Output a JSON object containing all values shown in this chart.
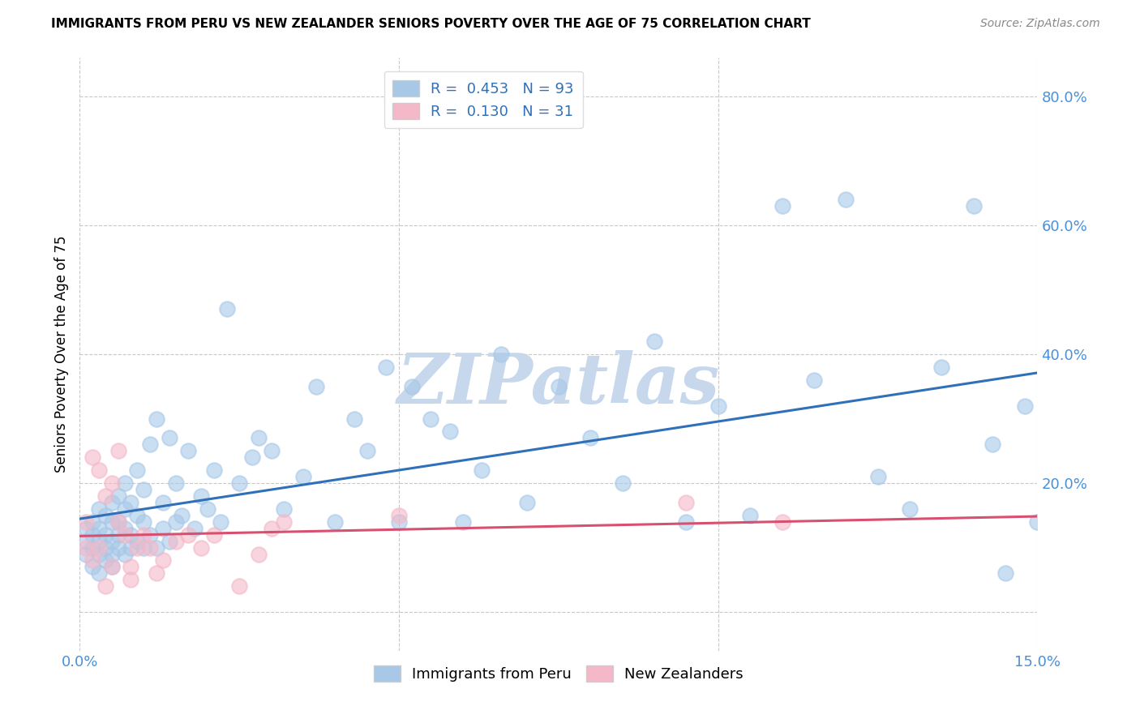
{
  "title": "IMMIGRANTS FROM PERU VS NEW ZEALANDER SENIORS POVERTY OVER THE AGE OF 75 CORRELATION CHART",
  "source": "Source: ZipAtlas.com",
  "ylabel": "Seniors Poverty Over the Age of 75",
  "xlim": [
    0.0,
    0.15
  ],
  "ylim": [
    -0.06,
    0.86
  ],
  "xticks": [
    0.0,
    0.05,
    0.1,
    0.15
  ],
  "xticklabels": [
    "0.0%",
    "",
    "",
    "15.0%"
  ],
  "yticks": [
    0.0,
    0.2,
    0.4,
    0.6,
    0.8
  ],
  "yticklabels": [
    "",
    "20.0%",
    "40.0%",
    "60.0%",
    "80.0%"
  ],
  "blue_R": 0.453,
  "blue_N": 93,
  "pink_R": 0.13,
  "pink_N": 31,
  "blue_color": "#a8c8e8",
  "pink_color": "#f4b8c8",
  "blue_line_color": "#3070b8",
  "pink_line_color": "#d85070",
  "blue_x": [
    0.001,
    0.001,
    0.001,
    0.002,
    0.002,
    0.002,
    0.002,
    0.003,
    0.003,
    0.003,
    0.003,
    0.003,
    0.004,
    0.004,
    0.004,
    0.004,
    0.005,
    0.005,
    0.005,
    0.005,
    0.005,
    0.006,
    0.006,
    0.006,
    0.006,
    0.007,
    0.007,
    0.007,
    0.007,
    0.008,
    0.008,
    0.008,
    0.009,
    0.009,
    0.009,
    0.01,
    0.01,
    0.01,
    0.011,
    0.011,
    0.012,
    0.012,
    0.013,
    0.013,
    0.014,
    0.014,
    0.015,
    0.015,
    0.016,
    0.017,
    0.018,
    0.019,
    0.02,
    0.021,
    0.022,
    0.023,
    0.025,
    0.027,
    0.028,
    0.03,
    0.032,
    0.035,
    0.037,
    0.04,
    0.043,
    0.045,
    0.048,
    0.05,
    0.052,
    0.055,
    0.058,
    0.06,
    0.063,
    0.066,
    0.07,
    0.075,
    0.08,
    0.085,
    0.09,
    0.095,
    0.1,
    0.105,
    0.11,
    0.115,
    0.12,
    0.125,
    0.13,
    0.135,
    0.14,
    0.143,
    0.145,
    0.148,
    0.15
  ],
  "blue_y": [
    0.09,
    0.13,
    0.11,
    0.07,
    0.1,
    0.14,
    0.12,
    0.06,
    0.09,
    0.13,
    0.16,
    0.11,
    0.08,
    0.12,
    0.15,
    0.1,
    0.07,
    0.11,
    0.14,
    0.17,
    0.09,
    0.1,
    0.14,
    0.18,
    0.12,
    0.09,
    0.13,
    0.16,
    0.2,
    0.12,
    0.17,
    0.1,
    0.11,
    0.15,
    0.22,
    0.1,
    0.14,
    0.19,
    0.12,
    0.26,
    0.1,
    0.3,
    0.13,
    0.17,
    0.11,
    0.27,
    0.14,
    0.2,
    0.15,
    0.25,
    0.13,
    0.18,
    0.16,
    0.22,
    0.14,
    0.47,
    0.2,
    0.24,
    0.27,
    0.25,
    0.16,
    0.21,
    0.35,
    0.14,
    0.3,
    0.25,
    0.38,
    0.14,
    0.35,
    0.3,
    0.28,
    0.14,
    0.22,
    0.4,
    0.17,
    0.35,
    0.27,
    0.2,
    0.42,
    0.14,
    0.32,
    0.15,
    0.63,
    0.36,
    0.64,
    0.21,
    0.16,
    0.38,
    0.63,
    0.26,
    0.06,
    0.32,
    0.14
  ],
  "pink_x": [
    0.001,
    0.001,
    0.002,
    0.002,
    0.003,
    0.003,
    0.004,
    0.004,
    0.005,
    0.005,
    0.006,
    0.006,
    0.007,
    0.008,
    0.009,
    0.01,
    0.011,
    0.012,
    0.013,
    0.015,
    0.017,
    0.019,
    0.021,
    0.025,
    0.028,
    0.032,
    0.05,
    0.095,
    0.11,
    0.03,
    0.008
  ],
  "pink_y": [
    0.1,
    0.14,
    0.08,
    0.24,
    0.1,
    0.22,
    0.18,
    0.04,
    0.07,
    0.2,
    0.14,
    0.25,
    0.12,
    0.07,
    0.1,
    0.12,
    0.1,
    0.06,
    0.08,
    0.11,
    0.12,
    0.1,
    0.12,
    0.04,
    0.09,
    0.14,
    0.15,
    0.17,
    0.14,
    0.13,
    0.05
  ],
  "watermark": "ZIPatlas",
  "watermark_color": "#c8d8ec",
  "background_color": "#ffffff",
  "grid_color": "#c8c8c8"
}
